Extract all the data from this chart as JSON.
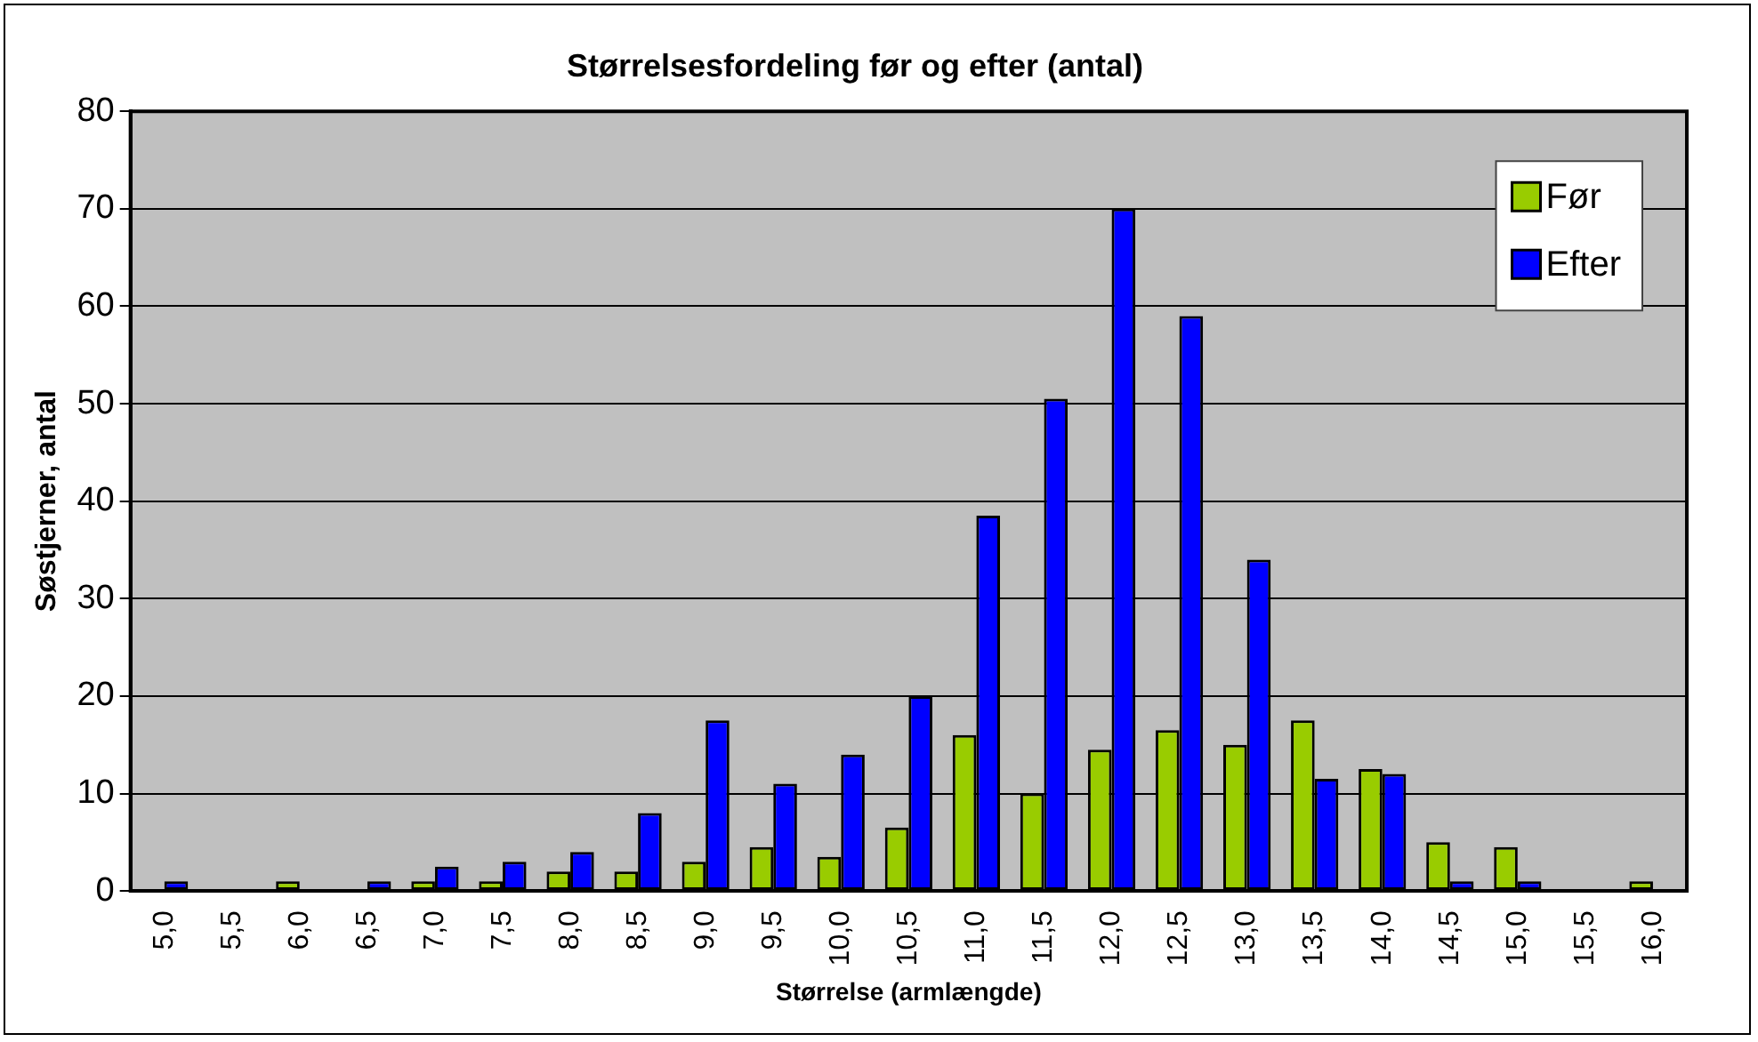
{
  "chart_data": {
    "type": "bar",
    "title": "Størrelsesfordeling før og efter (antal)",
    "xlabel": "Størrelse (armlængde)",
    "ylabel": "Søstjerner, antal",
    "categories": [
      "5,0",
      "5,5",
      "6,0",
      "6,5",
      "7,0",
      "7,5",
      "8,0",
      "8,5",
      "9,0",
      "9,5",
      "10,0",
      "10,5",
      "11,0",
      "11,5",
      "12,0",
      "12,5",
      "13,0",
      "13,5",
      "14,0",
      "14,5",
      "15,0",
      "15,5",
      "16,0"
    ],
    "series": [
      {
        "name": "Før",
        "color": "#99cc00",
        "values": [
          0,
          0,
          1,
          0,
          1,
          1,
          2,
          2,
          3,
          4.5,
          3.5,
          6.5,
          16,
          10,
          14.5,
          16.5,
          15,
          17.5,
          12.5,
          5,
          4.5,
          0,
          1
        ]
      },
      {
        "name": "Efter",
        "color": "#0000ff",
        "values": [
          1,
          0,
          0,
          1,
          2.5,
          3,
          4,
          8,
          17.5,
          11,
          14,
          20,
          38.5,
          50.5,
          70,
          59,
          34,
          11.5,
          12,
          1,
          1,
          0,
          0
        ]
      }
    ],
    "ylim": [
      0,
      80
    ],
    "yticks": [
      0,
      10,
      20,
      30,
      40,
      50,
      60,
      70,
      80
    ],
    "grid": "y",
    "legend": "top right"
  }
}
